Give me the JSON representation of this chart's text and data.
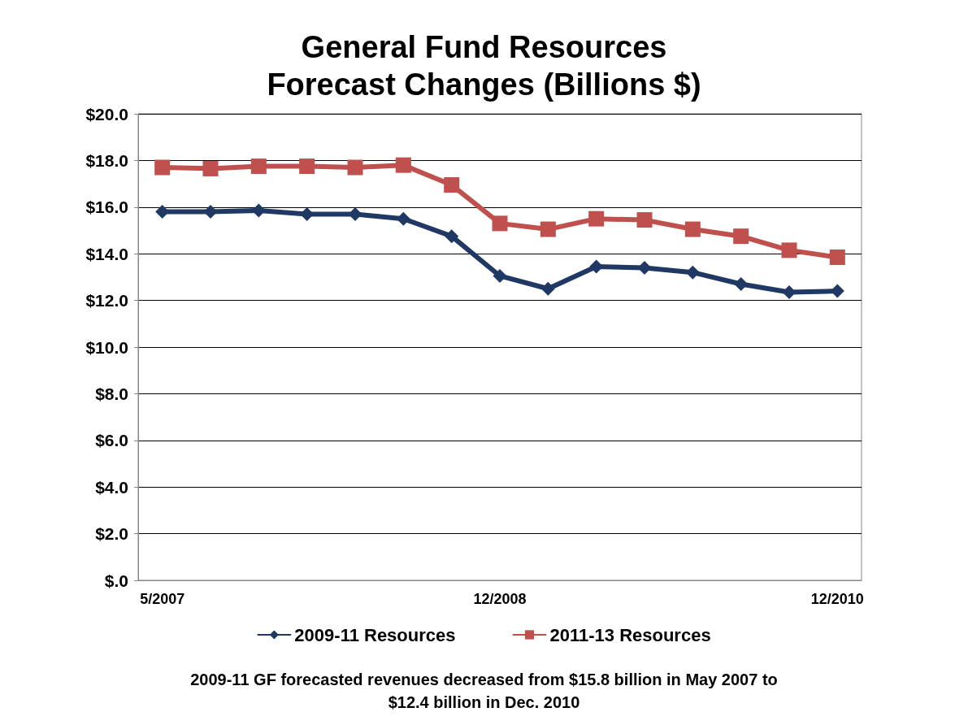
{
  "chart_data": {
    "type": "line",
    "title": "General Fund Resources\nForecast Changes (Billions $)",
    "categories": [
      "5/2007",
      null,
      null,
      null,
      null,
      null,
      null,
      "12/2008",
      null,
      null,
      null,
      null,
      null,
      null,
      "12/2010"
    ],
    "series": [
      {
        "name": "2009-11 Resources",
        "color": "#1f3864",
        "marker": "diamond",
        "values": [
          15.8,
          15.8,
          15.85,
          15.7,
          15.7,
          15.5,
          14.75,
          13.05,
          12.5,
          13.45,
          13.4,
          13.2,
          12.7,
          12.35,
          12.4
        ]
      },
      {
        "name": "2011-13 Resources",
        "color": "#c0504d",
        "marker": "square",
        "values": [
          17.7,
          17.65,
          17.75,
          17.75,
          17.7,
          17.8,
          16.95,
          15.3,
          15.05,
          15.5,
          15.45,
          15.05,
          14.75,
          14.15,
          13.85
        ]
      }
    ],
    "ylim": [
      0,
      20
    ],
    "yticks": [
      {
        "value": 0,
        "label": "$.0"
      },
      {
        "value": 2,
        "label": "$2.0"
      },
      {
        "value": 4,
        "label": "$4.0"
      },
      {
        "value": 6,
        "label": "$6.0"
      },
      {
        "value": 8,
        "label": "$8.0"
      },
      {
        "value": 10,
        "label": "$10.0"
      },
      {
        "value": 12,
        "label": "$12.0"
      },
      {
        "value": 14,
        "label": "$14.0"
      },
      {
        "value": 16,
        "label": "$16.0"
      },
      {
        "value": 18,
        "label": "$18.0"
      },
      {
        "value": 20,
        "label": "$20.0"
      }
    ],
    "grid": "y",
    "legend": "bottom",
    "line_style": "solid",
    "annotations": [
      "2009-11 GF forecasted revenues decreased from $15.8 billion in May 2007 to\n$12.4 billion in Dec. 2010"
    ]
  }
}
